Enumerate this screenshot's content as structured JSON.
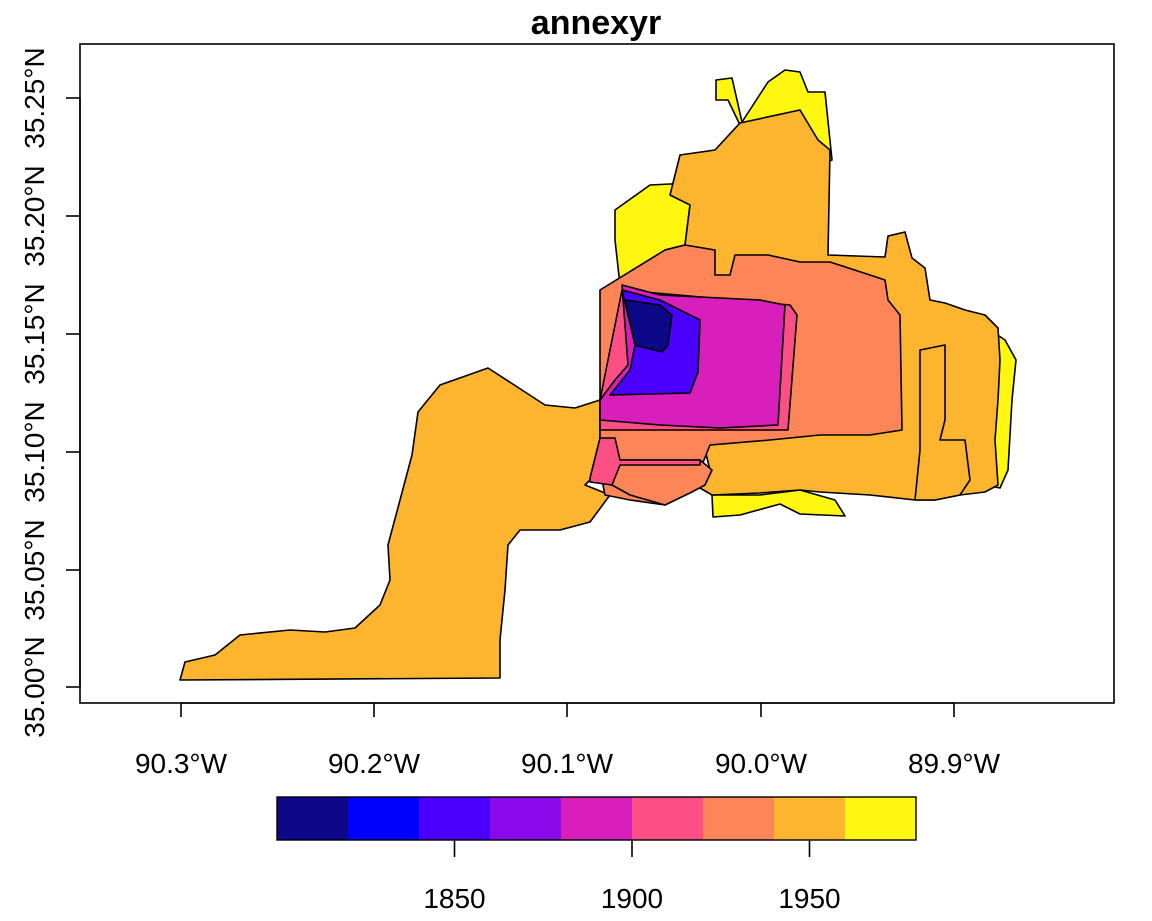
{
  "title": "annexyr",
  "axes": {
    "x_ticks": [
      "90.3°W",
      "90.2°W",
      "90.1°W",
      "90.0°W",
      "89.9°W"
    ],
    "y_ticks": [
      "35.00°N",
      "35.05°N",
      "35.10°N",
      "35.15°N",
      "35.20°N",
      "35.25°N"
    ]
  },
  "legend": {
    "colors": [
      "#0d0887",
      "#0000ff",
      "#4b00ff",
      "#8b0aeb",
      "#d81ebb",
      "#fb4f86",
      "#fd8557",
      "#fdb42f",
      "#fff710"
    ],
    "bin_edges": [
      1800,
      1820,
      1840,
      1860,
      1880,
      1900,
      1920,
      1940,
      1960,
      1980
    ],
    "tick_values": [
      1850,
      1900,
      1950
    ],
    "tick_labels": [
      "1850",
      "1900",
      "1950"
    ]
  },
  "chart_data": {
    "type": "choropleth",
    "title": "annexyr",
    "variable": "annexyr",
    "xlim_lon": [
      -90.345,
      -89.83
    ],
    "ylim_lat": [
      34.993,
      35.265
    ],
    "legend_range": [
      1800,
      1980
    ],
    "regions": [
      {
        "id": "r-yellow-west",
        "year": 1970
      },
      {
        "id": "r-yellow-north",
        "year": 1970
      },
      {
        "id": "r-yellow-east",
        "year": 1970
      },
      {
        "id": "r-yellow-south",
        "year": 1970
      },
      {
        "id": "r-orange-main",
        "year": 1950
      },
      {
        "id": "r-orange-southwest",
        "year": 1950
      },
      {
        "id": "r-orange-east-strips",
        "year": 1950
      },
      {
        "id": "r-salmon",
        "year": 1930
      },
      {
        "id": "r-salmon-southwest",
        "year": 1930
      },
      {
        "id": "r-pink",
        "year": 1910
      },
      {
        "id": "r-pink-south",
        "year": 1910
      },
      {
        "id": "r-magenta",
        "year": 1890
      },
      {
        "id": "r-violet",
        "year": 1850
      },
      {
        "id": "r-navy",
        "year": 1810
      }
    ]
  }
}
